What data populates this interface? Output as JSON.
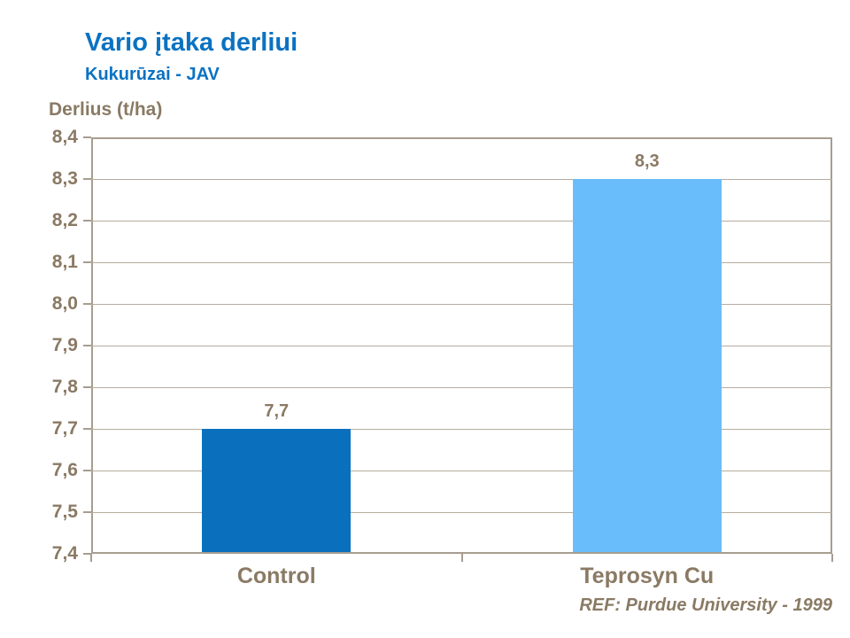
{
  "header": {
    "title": "Vario įtaka derliui",
    "subtitle": "Kukurūzai - JAV"
  },
  "footer": {
    "ref": "REF:  Purdue University - 1999"
  },
  "colors": {
    "title_blue": "#0b72c2",
    "text_brown": "#8a7a64",
    "axis_line": "#a79d90",
    "gridline": "#b5ac9e",
    "bar_control": "#0a70bd",
    "bar_teprosyn": "#69bdfb"
  },
  "chart_data": {
    "type": "bar",
    "title": "Vario įtaka derliui",
    "subtitle": "Kukurūzai - JAV",
    "ylabel": "Derlius (t/ha)",
    "xlabel": "",
    "categories": [
      "Control",
      "Teprosyn Cu"
    ],
    "values": [
      7.7,
      8.3
    ],
    "value_labels": [
      "7,7",
      "8,3"
    ],
    "bar_colors": [
      "#0a70bd",
      "#69bdfb"
    ],
    "ylim": [
      7.4,
      8.4
    ],
    "ytick_step": 0.1,
    "ytick_labels": [
      "7,4",
      "7,5",
      "7,6",
      "7,7",
      "7,8",
      "7,9",
      "8,0",
      "8,1",
      "8,2",
      "8,3",
      "8,4"
    ],
    "grid": true,
    "legend": "none",
    "footnote": "REF:  Purdue University - 1999"
  }
}
